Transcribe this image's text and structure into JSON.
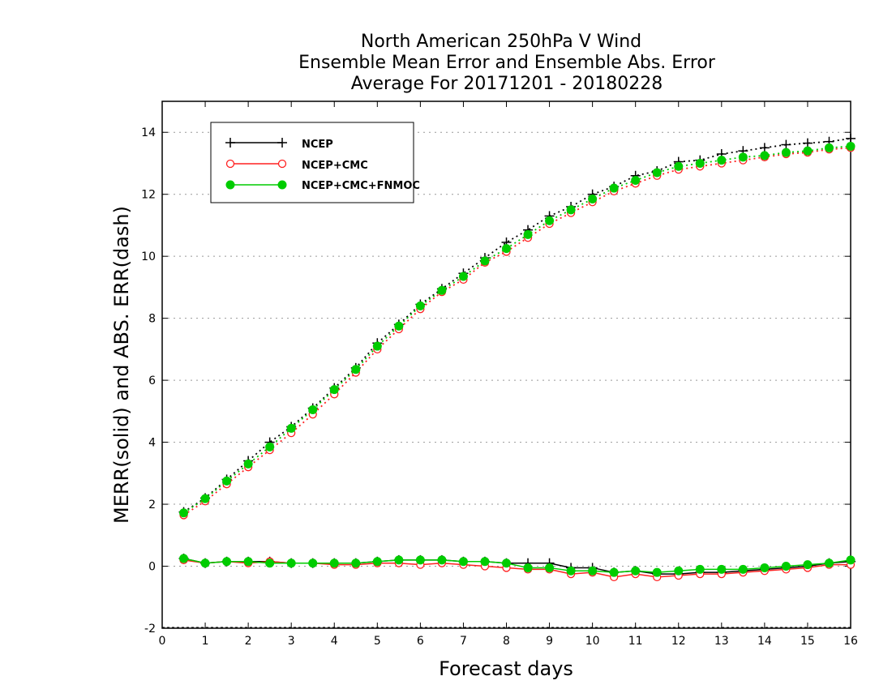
{
  "chart_data": {
    "type": "line",
    "title_lines": [
      "North American 250hPa V Wind",
      "Ensemble Mean Error and Ensemble Abs. Error",
      "Average For 20171201 - 20180228"
    ],
    "xlabel": "Forecast days",
    "ylabel": "MERR(solid) and ABS. ERR(dash)",
    "xlim": [
      0,
      16
    ],
    "ylim": [
      -2,
      15
    ],
    "xticks": [
      "0",
      "1",
      "2",
      "3",
      "4",
      "5",
      "6",
      "7",
      "8",
      "9",
      "10",
      "11",
      "12",
      "13",
      "14",
      "15",
      "16"
    ],
    "yticks": [
      "-2",
      "0",
      "2",
      "4",
      "6",
      "8",
      "10",
      "12",
      "14"
    ],
    "grid": "horizontal dotted",
    "legend_position": "top-left",
    "x": [
      0.5,
      1,
      1.5,
      2,
      2.5,
      3,
      3.5,
      4,
      4.5,
      5,
      5.5,
      6,
      6.5,
      7,
      7.5,
      8,
      8.5,
      9,
      9.5,
      10,
      10.5,
      11,
      11.5,
      12,
      12.5,
      13,
      13.5,
      14,
      14.5,
      15,
      15.5,
      16
    ],
    "series": [
      {
        "name": "NCEP",
        "color": "#000000",
        "marker": "plus",
        "abs_err": [
          1.75,
          2.2,
          2.8,
          3.4,
          4.0,
          4.5,
          5.1,
          5.75,
          6.4,
          7.2,
          7.8,
          8.45,
          8.95,
          9.45,
          9.95,
          10.45,
          10.85,
          11.3,
          11.6,
          12.0,
          12.25,
          12.6,
          12.75,
          13.05,
          13.1,
          13.3,
          13.4,
          13.5,
          13.6,
          13.65,
          13.7,
          13.8
        ],
        "mean_err": [
          0.25,
          0.1,
          0.15,
          0.15,
          0.15,
          0.1,
          0.1,
          0.1,
          0.1,
          0.15,
          0.2,
          0.2,
          0.2,
          0.15,
          0.15,
          0.1,
          0.1,
          0.1,
          -0.05,
          -0.05,
          -0.2,
          -0.15,
          -0.25,
          -0.25,
          -0.2,
          -0.2,
          -0.15,
          -0.1,
          -0.05,
          0.0,
          0.1,
          0.15
        ]
      },
      {
        "name": "NCEP+CMC",
        "color": "#ff2020",
        "marker": "open-circle",
        "abs_err": [
          1.65,
          2.1,
          2.65,
          3.2,
          3.75,
          4.3,
          4.9,
          5.55,
          6.25,
          7.0,
          7.65,
          8.3,
          8.85,
          9.25,
          9.8,
          10.15,
          10.6,
          11.05,
          11.4,
          11.75,
          12.1,
          12.35,
          12.6,
          12.8,
          12.9,
          13.0,
          13.1,
          13.2,
          13.3,
          13.35,
          13.45,
          13.5
        ],
        "mean_err": [
          0.2,
          0.1,
          0.15,
          0.1,
          0.15,
          0.1,
          0.1,
          0.05,
          0.05,
          0.1,
          0.1,
          0.05,
          0.1,
          0.05,
          0.0,
          -0.05,
          -0.1,
          -0.1,
          -0.25,
          -0.2,
          -0.35,
          -0.25,
          -0.35,
          -0.3,
          -0.25,
          -0.25,
          -0.2,
          -0.15,
          -0.1,
          -0.05,
          0.05,
          0.05
        ]
      },
      {
        "name": "NCEP+CMC+FNMOC",
        "color": "#00cc00",
        "marker": "filled-circle",
        "abs_err": [
          1.72,
          2.18,
          2.75,
          3.3,
          3.85,
          4.45,
          5.05,
          5.7,
          6.35,
          7.1,
          7.75,
          8.4,
          8.9,
          9.35,
          9.85,
          10.25,
          10.7,
          11.15,
          11.5,
          11.85,
          12.2,
          12.45,
          12.7,
          12.9,
          13.0,
          13.1,
          13.2,
          13.25,
          13.35,
          13.4,
          13.5,
          13.55
        ],
        "mean_err": [
          0.25,
          0.1,
          0.15,
          0.15,
          0.1,
          0.1,
          0.1,
          0.1,
          0.1,
          0.15,
          0.2,
          0.2,
          0.2,
          0.15,
          0.15,
          0.1,
          -0.05,
          -0.05,
          -0.15,
          -0.15,
          -0.2,
          -0.15,
          -0.2,
          -0.15,
          -0.1,
          -0.1,
          -0.1,
          -0.05,
          0.0,
          0.05,
          0.1,
          0.2
        ]
      }
    ]
  }
}
